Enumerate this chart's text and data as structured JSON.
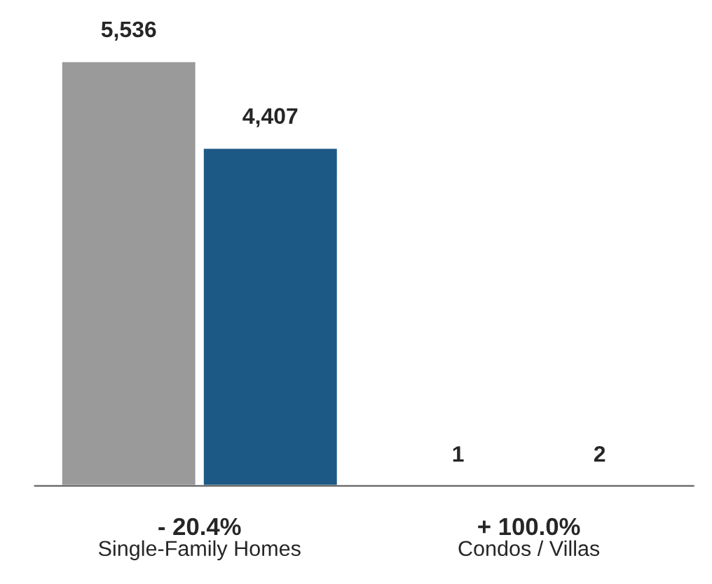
{
  "chart_data": {
    "type": "bar",
    "categories": [
      "Single-Family Homes",
      "Condos / Villas"
    ],
    "series": [
      {
        "color": "#9a9a9a",
        "values": [
          5536,
          1
        ],
        "value_labels": [
          "5,536",
          "1"
        ]
      },
      {
        "color": "#1d5985",
        "values": [
          4407,
          2
        ],
        "value_labels": [
          "4,407",
          "2"
        ]
      }
    ],
    "grid": false,
    "legend": false,
    "annotations": [
      "- 20.4%",
      "+ 100.0%"
    ]
  }
}
